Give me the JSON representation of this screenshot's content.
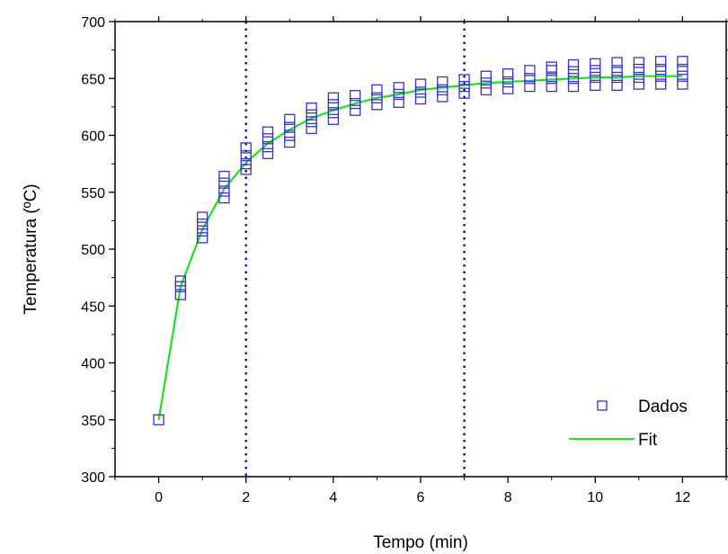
{
  "chart_data": {
    "type": "scatter",
    "title": "",
    "xlabel": "Tempo (min)",
    "ylabel": "Temperatura (ºC)",
    "xlim": [
      -1,
      13
    ],
    "ylim": [
      300,
      700
    ],
    "xticks": [
      0,
      2,
      4,
      6,
      8,
      10,
      12
    ],
    "yticks": [
      300,
      350,
      400,
      450,
      500,
      550,
      600,
      650,
      700
    ],
    "reference_lines_x": [
      2,
      7
    ],
    "legend": {
      "position": "bottom-right",
      "entries": [
        "Dados",
        "Fit"
      ]
    },
    "colors": {
      "data": "#3333cc",
      "fit": "#22dd22",
      "reference": "#1a1a8c"
    },
    "series": [
      {
        "name": "Dados",
        "kind": "markers",
        "marker": "open-square",
        "points": [
          [
            0,
            350
          ],
          [
            0.5,
            460
          ],
          [
            0.5,
            467
          ],
          [
            0.5,
            472
          ],
          [
            1,
            510
          ],
          [
            1,
            516
          ],
          [
            1,
            522
          ],
          [
            1,
            528
          ],
          [
            1.5,
            545
          ],
          [
            1.5,
            551
          ],
          [
            1.5,
            558
          ],
          [
            1.5,
            564
          ],
          [
            2,
            570
          ],
          [
            2,
            575
          ],
          [
            2,
            582
          ],
          [
            2,
            589
          ],
          [
            2.5,
            584
          ],
          [
            2.5,
            590
          ],
          [
            2.5,
            597
          ],
          [
            2.5,
            603
          ],
          [
            3,
            594
          ],
          [
            3,
            600
          ],
          [
            3,
            607
          ],
          [
            3,
            614
          ],
          [
            3.5,
            606
          ],
          [
            3.5,
            612
          ],
          [
            3.5,
            618
          ],
          [
            3.5,
            624
          ],
          [
            4,
            614
          ],
          [
            4,
            620
          ],
          [
            4,
            627
          ],
          [
            4,
            633
          ],
          [
            4.5,
            622
          ],
          [
            4.5,
            628
          ],
          [
            4.5,
            635
          ],
          [
            5,
            627
          ],
          [
            5,
            633
          ],
          [
            5,
            640
          ],
          [
            5.5,
            629
          ],
          [
            5.5,
            636
          ],
          [
            5.5,
            642
          ],
          [
            6,
            632
          ],
          [
            6,
            638
          ],
          [
            6,
            645
          ],
          [
            6.5,
            634
          ],
          [
            6.5,
            640
          ],
          [
            6.5,
            647
          ],
          [
            7,
            637
          ],
          [
            7,
            643
          ],
          [
            7,
            649
          ],
          [
            7.5,
            640
          ],
          [
            7.5,
            646
          ],
          [
            7.5,
            652
          ],
          [
            8,
            641
          ],
          [
            8,
            647
          ],
          [
            8,
            654
          ],
          [
            8.5,
            643
          ],
          [
            8.5,
            650
          ],
          [
            8.5,
            657
          ],
          [
            9,
            643
          ],
          [
            9,
            650
          ],
          [
            9,
            657
          ],
          [
            9,
            660
          ],
          [
            9.5,
            643
          ],
          [
            9.5,
            650
          ],
          [
            9.5,
            656
          ],
          [
            9.5,
            662
          ],
          [
            10,
            644
          ],
          [
            10,
            651
          ],
          [
            10,
            657
          ],
          [
            10,
            663
          ],
          [
            10.5,
            644
          ],
          [
            10.5,
            651
          ],
          [
            10.5,
            657
          ],
          [
            10.5,
            664
          ],
          [
            11,
            645
          ],
          [
            11,
            651
          ],
          [
            11,
            658
          ],
          [
            11,
            664
          ],
          [
            11.5,
            645
          ],
          [
            11.5,
            652
          ],
          [
            11.5,
            658
          ],
          [
            11.5,
            665
          ],
          [
            12,
            645
          ],
          [
            12,
            652
          ],
          [
            12,
            658
          ],
          [
            12,
            665
          ]
        ]
      },
      {
        "name": "Fit",
        "kind": "line",
        "points": [
          [
            0,
            350
          ],
          [
            0.5,
            467
          ],
          [
            1,
            517
          ],
          [
            1.5,
            553
          ],
          [
            2,
            576
          ],
          [
            2.5,
            593
          ],
          [
            3,
            605
          ],
          [
            3.5,
            615
          ],
          [
            4,
            622
          ],
          [
            4.5,
            628
          ],
          [
            5,
            633
          ],
          [
            5.5,
            636
          ],
          [
            6,
            640
          ],
          [
            6.5,
            642
          ],
          [
            7,
            644
          ],
          [
            7.5,
            646
          ],
          [
            8,
            647
          ],
          [
            8.5,
            648
          ],
          [
            9,
            649
          ],
          [
            9.5,
            650
          ],
          [
            10,
            651
          ],
          [
            10.5,
            651
          ],
          [
            11,
            652
          ],
          [
            11.5,
            652
          ],
          [
            12,
            652
          ]
        ]
      }
    ]
  }
}
